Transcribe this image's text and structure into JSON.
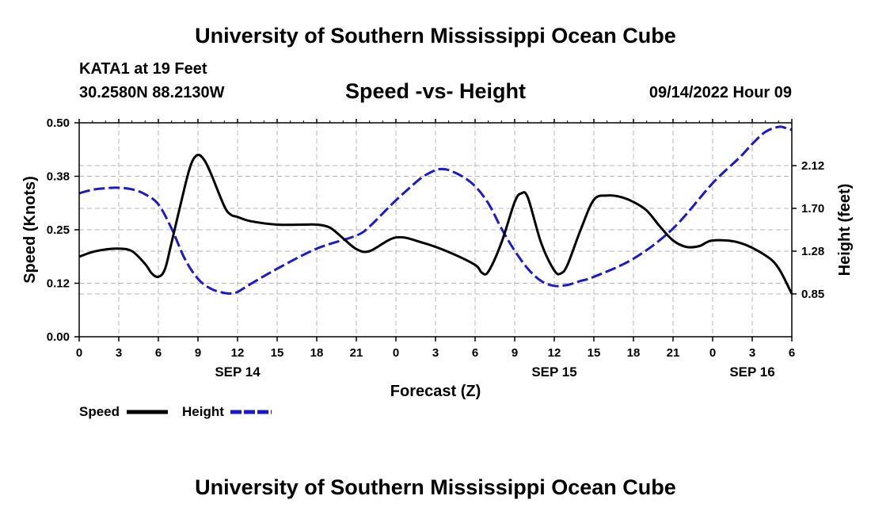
{
  "header": {
    "title": "University of Southern Mississippi Ocean Cube",
    "station": "KATA1 at 19 Feet",
    "coords": "30.2580N  88.2130W",
    "chart_title": "Speed -vs- Height",
    "datetime": "09/14/2022 Hour 09"
  },
  "footer": {
    "title": "University of Southern Mississippi Ocean Cube"
  },
  "colors": {
    "speed": "#000000",
    "height": "#1a1acc",
    "grid": "#b4b4b4"
  },
  "chart_data": {
    "type": "line",
    "title": "Speed -vs- Height",
    "xlabel": "Forecast (Z)",
    "ylabel_left": "Speed (Knots)",
    "ylabel_right": "Height (feet)",
    "x_range_hours": [
      0,
      54
    ],
    "x_tick_hours": [
      0,
      3,
      6,
      9,
      12,
      15,
      18,
      21,
      24,
      27,
      30,
      33,
      36,
      39,
      42,
      45,
      48,
      51,
      54
    ],
    "x_tick_labels": [
      "0",
      "3",
      "6",
      "9",
      "12",
      "15",
      "18",
      "21",
      "0",
      "3",
      "6",
      "9",
      "12",
      "15",
      "18",
      "21",
      "0",
      "3",
      "6"
    ],
    "day_labels": [
      {
        "hour": 12,
        "label": "SEP 14"
      },
      {
        "hour": 36,
        "label": "SEP 15"
      },
      {
        "hour": 51,
        "label": "SEP 16"
      }
    ],
    "y_left": {
      "range": [
        0,
        0.5
      ],
      "ticks": [
        0,
        0.125,
        0.25,
        0.375,
        0.5
      ],
      "tick_labels": [
        "0.00",
        "0.12",
        "0.25",
        "0.38",
        "0.50"
      ]
    },
    "y_right": {
      "range": [
        0.425,
        2.55
      ],
      "ticks": [
        0.85,
        1.275,
        1.7,
        2.125
      ],
      "tick_labels": [
        "0.85",
        "1.28",
        "1.70",
        "2.12"
      ]
    },
    "series": [
      {
        "name": "Speed",
        "axis": "left",
        "style": "solid",
        "x": [
          0,
          1,
          2,
          3,
          4,
          5,
          5.5,
          6,
          6.5,
          7,
          8,
          8.5,
          9,
          9.5,
          10,
          11,
          11.5,
          12,
          13,
          15,
          17,
          18,
          19,
          20,
          21,
          22,
          24,
          26,
          28,
          30,
          30.5,
          31,
          32,
          33,
          33.5,
          34,
          35,
          36,
          36.5,
          37,
          38,
          39,
          40,
          41,
          42,
          43,
          44,
          45,
          46,
          47,
          48,
          50,
          52,
          53,
          54
        ],
        "values": [
          0.187,
          0.198,
          0.204,
          0.206,
          0.2,
          0.17,
          0.148,
          0.14,
          0.158,
          0.22,
          0.35,
          0.405,
          0.425,
          0.412,
          0.38,
          0.305,
          0.285,
          0.28,
          0.27,
          0.262,
          0.262,
          0.262,
          0.255,
          0.23,
          0.205,
          0.2,
          0.232,
          0.22,
          0.198,
          0.168,
          0.15,
          0.152,
          0.22,
          0.315,
          0.335,
          0.325,
          0.22,
          0.155,
          0.148,
          0.168,
          0.25,
          0.32,
          0.33,
          0.327,
          0.315,
          0.295,
          0.258,
          0.225,
          0.21,
          0.212,
          0.225,
          0.22,
          0.19,
          0.16,
          0.1
        ]
      },
      {
        "name": "Height",
        "axis": "right",
        "style": "dashed",
        "x": [
          0,
          1,
          2,
          3,
          4,
          5,
          6,
          7,
          8,
          9,
          10,
          11,
          11.5,
          12,
          13,
          15,
          18,
          21,
          22,
          23,
          24,
          25,
          26,
          27,
          27.5,
          28,
          29,
          30,
          31,
          32,
          33,
          34,
          35,
          36,
          37,
          38,
          39,
          42,
          45,
          48,
          50,
          51,
          52,
          53,
          53.5,
          54
        ],
        "values": [
          1.85,
          1.885,
          1.9,
          1.905,
          1.89,
          1.84,
          1.74,
          1.5,
          1.2,
          1.0,
          0.9,
          0.86,
          0.855,
          0.87,
          0.95,
          1.1,
          1.3,
          1.43,
          1.52,
          1.65,
          1.78,
          1.9,
          2.01,
          2.08,
          2.09,
          2.08,
          2.02,
          1.92,
          1.75,
          1.5,
          1.28,
          1.1,
          0.98,
          0.93,
          0.94,
          0.98,
          1.02,
          1.2,
          1.5,
          1.95,
          2.2,
          2.34,
          2.46,
          2.51,
          2.5,
          2.48
        ]
      }
    ],
    "legend": [
      {
        "label": "Speed",
        "style": "solid"
      },
      {
        "label": "Height",
        "style": "dashed"
      }
    ],
    "legend_position": "bottom-left",
    "grid": true
  }
}
